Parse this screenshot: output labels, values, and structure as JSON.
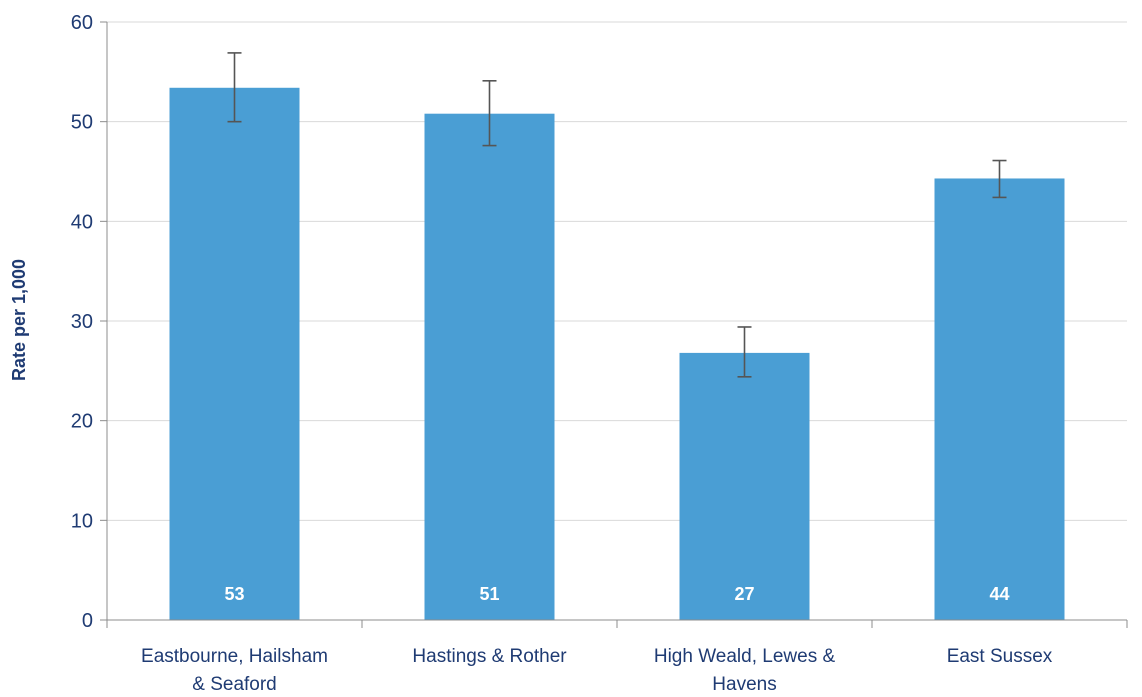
{
  "chart_data": {
    "type": "bar",
    "categories": [
      [
        "Eastbourne, Hailsham",
        "& Seaford"
      ],
      [
        "Hastings & Rother"
      ],
      [
        "High Weald, Lewes &",
        "Havens"
      ],
      [
        "East Sussex"
      ]
    ],
    "values": [
      53.4,
      50.8,
      26.8,
      44.3
    ],
    "data_labels": [
      "53",
      "51",
      "27",
      "44"
    ],
    "error_bars": [
      {
        "low": 50.0,
        "high": 56.9
      },
      {
        "low": 47.6,
        "high": 54.1
      },
      {
        "low": 24.4,
        "high": 29.4
      },
      {
        "low": 42.4,
        "high": 46.1
      }
    ],
    "ylabel": "Rate per 1,000",
    "ylim": [
      0,
      60
    ],
    "yticks": [
      "0",
      "10",
      "20",
      "30",
      "40",
      "50",
      "60"
    ],
    "grid": true,
    "legend": "none",
    "colors": {
      "bar": "#4a9ed4",
      "error_bar": "#555555",
      "grid": "#d9d9d9",
      "axis": "#8c8c8c",
      "text": "#1f3b73"
    }
  }
}
